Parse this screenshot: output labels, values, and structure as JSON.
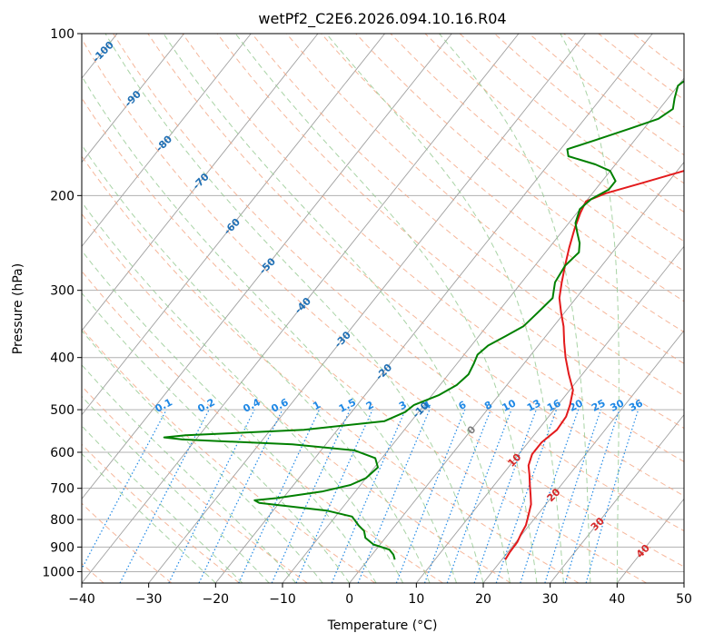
{
  "chart_data": {
    "type": "line",
    "title": "wetPf2_C2E6.2026.094.10.16.R04",
    "xlabel": "Temperature (°C)",
    "ylabel": "Pressure (hPa)",
    "xlim": [
      -40,
      50
    ],
    "ylim": [
      1050,
      100
    ],
    "y_scale": "log",
    "grid": true,
    "x_ticks": [
      "−40",
      "−30",
      "−20",
      "−10",
      "0",
      "10",
      "20",
      "30",
      "40",
      "50"
    ],
    "y_ticks": [
      "100",
      "200",
      "300",
      "400",
      "500",
      "600",
      "700",
      "800",
      "900",
      "1000"
    ],
    "colors": {
      "temperature": "#e31a1c",
      "dewpoint": "#008000",
      "isotherm": "#a0a0a0",
      "dry_adiabat": "#f4a582",
      "moist_adiabat": "#92c88f",
      "mixing_ratio": "#1e88e5",
      "isotherm_label": "#1f6fb4",
      "adiabat_label": "#d62728"
    },
    "isotherm_labels": [
      "-100",
      "-90",
      "-80",
      "-70",
      "-60",
      "-50",
      "-40",
      "-30",
      "-20",
      "-10",
      "0"
    ],
    "mixing_ratio_labels": [
      "0.1",
      "0.2",
      "0.4",
      "0.6",
      "1",
      "1.5",
      "2",
      "3",
      "4",
      "6",
      "8",
      "10",
      "13",
      "16",
      "20",
      "25",
      "30",
      "36"
    ],
    "adiabat_labels": [
      "10",
      "20",
      "30",
      "40"
    ],
    "series": [
      {
        "key": "temperature",
        "points": [
          [
            20.5,
            950
          ],
          [
            20.3,
            920
          ],
          [
            20.2,
            880
          ],
          [
            19.8,
            850
          ],
          [
            19.5,
            820
          ],
          [
            18.8,
            790
          ],
          [
            17.8,
            750
          ],
          [
            16.6,
            720
          ],
          [
            15.3,
            690
          ],
          [
            14.0,
            660
          ],
          [
            12.8,
            635
          ],
          [
            12.0,
            605
          ],
          [
            12.0,
            575
          ],
          [
            12.8,
            545
          ],
          [
            12.6,
            515
          ],
          [
            11.8,
            490
          ],
          [
            10.5,
            460
          ],
          [
            8.0,
            430
          ],
          [
            5.5,
            400
          ],
          [
            3.5,
            375
          ],
          [
            1.5,
            350
          ],
          [
            -0.5,
            330
          ],
          [
            -2.5,
            310
          ],
          [
            -4.0,
            290
          ],
          [
            -5.5,
            270
          ],
          [
            -7.0,
            250
          ],
          [
            -8.5,
            230
          ],
          [
            -9.5,
            215
          ],
          [
            -10.0,
            205
          ],
          [
            -8.0,
            198
          ],
          [
            -4.0,
            190
          ],
          [
            1.0,
            180
          ],
          [
            6.0,
            170
          ],
          [
            10.5,
            160
          ],
          [
            13.5,
            150
          ],
          [
            14.5,
            140
          ],
          [
            15.3,
            130
          ],
          [
            16.5,
            120
          ],
          [
            17.2,
            113
          ],
          [
            18.5,
            106
          ],
          [
            19.8,
            100
          ]
        ]
      },
      {
        "key": "dewpoint",
        "points": [
          [
            4.0,
            950
          ],
          [
            3.2,
            930
          ],
          [
            2.0,
            910
          ],
          [
            -1.0,
            890
          ],
          [
            -3.0,
            865
          ],
          [
            -4.0,
            840
          ],
          [
            -5.5,
            820
          ],
          [
            -7.5,
            790
          ],
          [
            -12.0,
            770
          ],
          [
            -23.0,
            745
          ],
          [
            -24.0,
            737
          ],
          [
            -21.0,
            730
          ],
          [
            -15.0,
            710
          ],
          [
            -11.5,
            690
          ],
          [
            -10.0,
            670
          ],
          [
            -9.5,
            640
          ],
          [
            -11.0,
            615
          ],
          [
            -15.0,
            595
          ],
          [
            -25.0,
            580
          ],
          [
            -42.0,
            568
          ],
          [
            -45.0,
            563
          ],
          [
            -42.0,
            558
          ],
          [
            -25.0,
            545
          ],
          [
            -14.0,
            525
          ],
          [
            -12.0,
            505
          ],
          [
            -11.5,
            490
          ],
          [
            -9.0,
            470
          ],
          [
            -7.5,
            450
          ],
          [
            -7.0,
            430
          ],
          [
            -7.5,
            410
          ],
          [
            -8.0,
            395
          ],
          [
            -7.5,
            380
          ],
          [
            -6.0,
            365
          ],
          [
            -4.5,
            350
          ],
          [
            -4.0,
            330
          ],
          [
            -3.5,
            310
          ],
          [
            -5.0,
            290
          ],
          [
            -5.5,
            270
          ],
          [
            -5.0,
            255
          ],
          [
            -6.0,
            245
          ],
          [
            -7.5,
            235
          ],
          [
            -9.0,
            225
          ],
          [
            -10.0,
            212
          ],
          [
            -9.5,
            203
          ],
          [
            -8.0,
            195
          ],
          [
            -8.0,
            188
          ],
          [
            -10.0,
            180
          ],
          [
            -13.0,
            175
          ],
          [
            -18.0,
            169
          ],
          [
            -19.0,
            164
          ],
          [
            -16.0,
            158
          ],
          [
            -12.0,
            150
          ],
          [
            -9.0,
            144
          ],
          [
            -8.0,
            138
          ],
          [
            -9.0,
            132
          ],
          [
            -10.0,
            125
          ],
          [
            -9.0,
            118
          ],
          [
            -7.0,
            112
          ],
          [
            -4.0,
            106
          ],
          [
            -1.0,
            100
          ]
        ]
      }
    ]
  }
}
